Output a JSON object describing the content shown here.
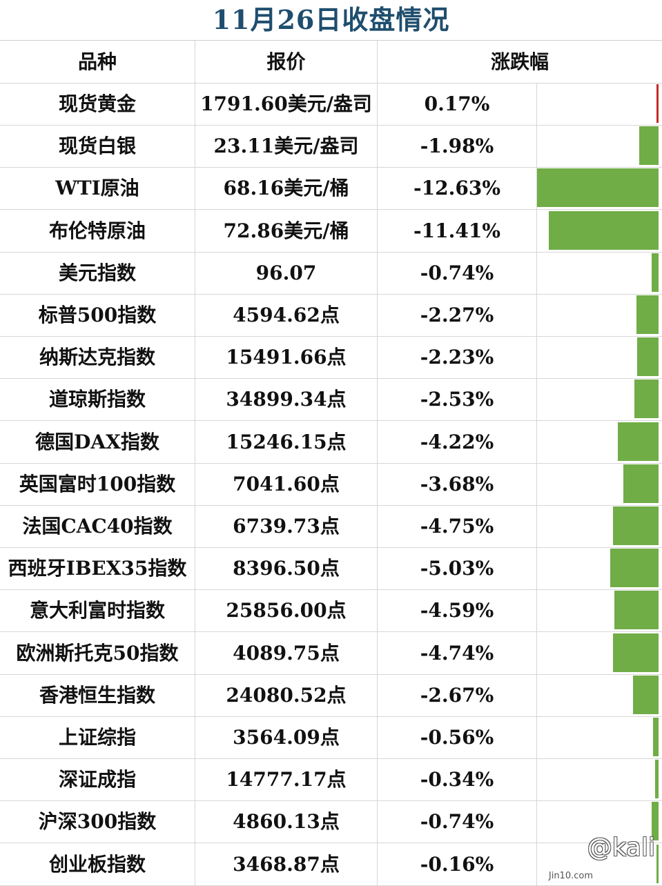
{
  "title": "11月26日收盘情况",
  "headers": {
    "name": "品种",
    "price": "报价",
    "change": "涨跌幅"
  },
  "colors": {
    "positive": "#c62828",
    "negative": "#70ad47",
    "title": "#1f4e6e"
  },
  "watermark": {
    "handle": "@kali",
    "site": "Jin10.com"
  },
  "chart_data": {
    "type": "bar",
    "orientation": "horizontal",
    "categories": [
      "现货黄金",
      "现货白银",
      "WTI原油",
      "布伦特原油",
      "美元指数",
      "标普500指数",
      "纳斯达克指数",
      "道琼斯指数",
      "德国DAX指数",
      "英国富时100指数",
      "法国CAC40指数",
      "西班牙IBEX35指数",
      "意大利富时指数",
      "欧洲斯托克50指数",
      "香港恒生指数",
      "上证综指",
      "深证成指",
      "沪深300指数",
      "创业板指数"
    ],
    "prices": [
      "1791.60美元/盎司",
      "23.11美元/盎司",
      "68.16美元/桶",
      "72.86美元/桶",
      "96.07",
      "4594.62点",
      "15491.66点",
      "34899.34点",
      "15246.15点",
      "7041.60点",
      "6739.73点",
      "8396.50点",
      "25856.00点",
      "4089.75点",
      "24080.52点",
      "3564.09点",
      "14777.17点",
      "4860.13点",
      "3468.87点"
    ],
    "change_labels": [
      "0.17%",
      "-1.98%",
      "-12.63%",
      "-11.41%",
      "-0.74%",
      "-2.27%",
      "-2.23%",
      "-2.53%",
      "-4.22%",
      "-3.68%",
      "-4.75%",
      "-5.03%",
      "-4.59%",
      "-4.74%",
      "-2.67%",
      "-0.56%",
      "-0.34%",
      "-0.74%",
      "-0.16%"
    ],
    "values": [
      0.17,
      -1.98,
      -12.63,
      -11.41,
      -0.74,
      -2.27,
      -2.23,
      -2.53,
      -4.22,
      -3.68,
      -4.75,
      -5.03,
      -4.59,
      -4.74,
      -2.67,
      -0.56,
      -0.34,
      -0.74,
      -0.16
    ],
    "xlim": [
      -12.63,
      0
    ]
  }
}
